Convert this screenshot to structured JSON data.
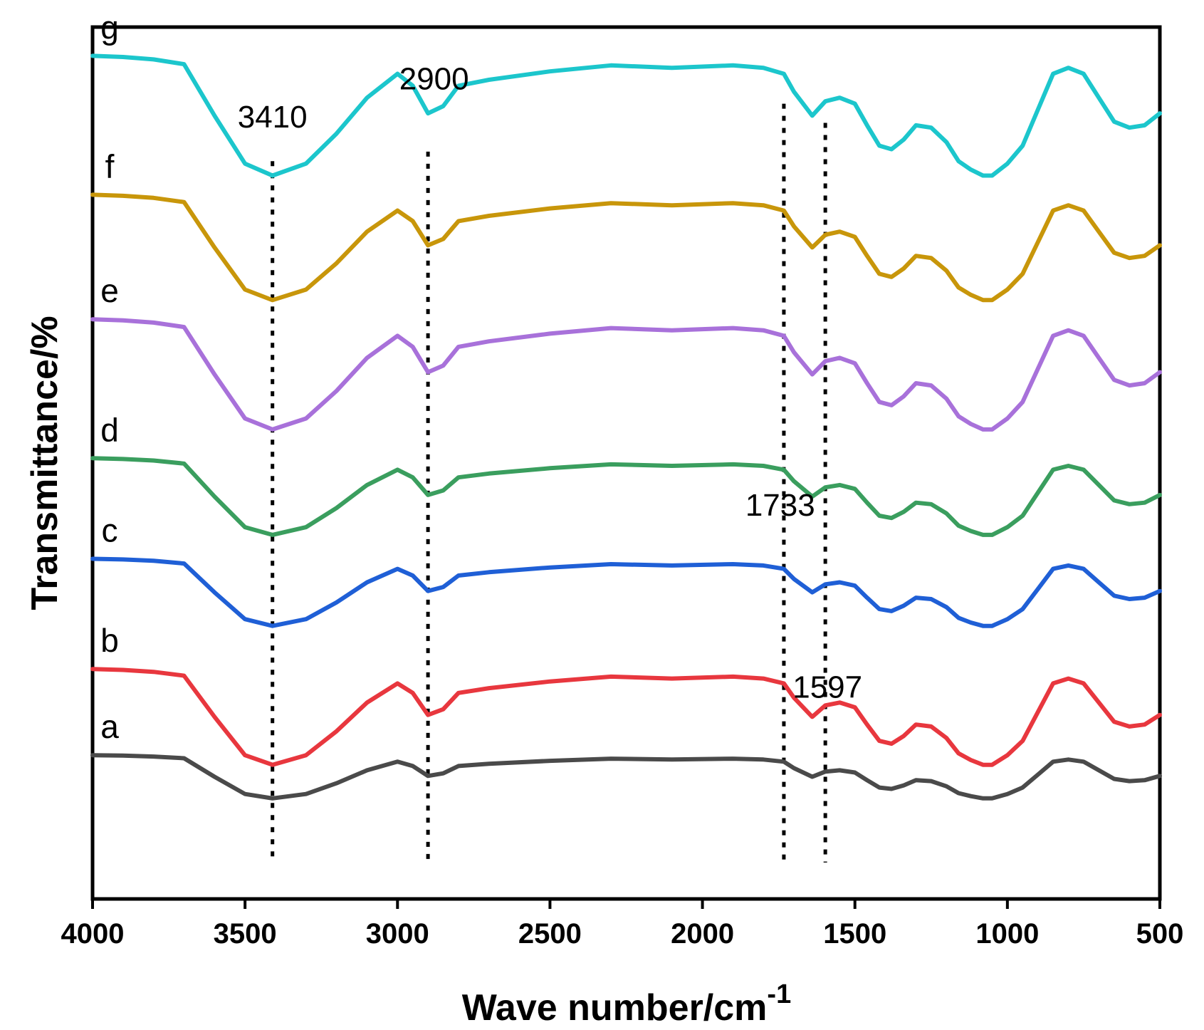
{
  "chart_data": {
    "type": "line",
    "title": "",
    "xlabel": "Wave number/cm",
    "xlabel_superscript": "-1",
    "ylabel": "Transmittance/%",
    "xlim": [
      4000,
      500
    ],
    "x_reversed": true,
    "ylim": [
      -0.5,
      8.6
    ],
    "y_ticks_shown": false,
    "grid": false,
    "legend": "none (inline letter labels at left)",
    "x_ticks": [
      4000,
      3500,
      3000,
      2500,
      2000,
      1500,
      1000,
      500
    ],
    "x_tick_labels": [
      "4000",
      "3500",
      "3000",
      "2500",
      "2000",
      "1500",
      "1000",
      "500"
    ],
    "reference_lines": [
      {
        "x": 3410,
        "y_top": 7.2
      },
      {
        "x": 2900,
        "y_top": 7.3
      },
      {
        "x": 1733,
        "y_top": 7.8
      },
      {
        "x": 1597,
        "y_top": 7.6
      }
    ],
    "annotations": [
      {
        "text": "3410",
        "x": 3410,
        "y": 7.55
      },
      {
        "text": "2900",
        "x": 2880,
        "y": 7.95
      },
      {
        "text": "1733",
        "x": 1745,
        "y": 3.5
      },
      {
        "text": "1597",
        "x": 1590,
        "y": 1.6
      }
    ],
    "series": [
      {
        "name": "a",
        "color": "#4a4a4a",
        "offset": 1.0,
        "depth": 0.45,
        "x": [
          4000,
          3900,
          3800,
          3700,
          3600,
          3500,
          3410,
          3300,
          3200,
          3100,
          3000,
          2950,
          2900,
          2850,
          2800,
          2700,
          2500,
          2300,
          2100,
          1900,
          1800,
          1733,
          1700,
          1640,
          1597,
          1550,
          1500,
          1460,
          1420,
          1380,
          1340,
          1300,
          1250,
          1200,
          1160,
          1120,
          1080,
          1050,
          1000,
          950,
          900,
          850,
          800,
          750,
          700,
          650,
          600,
          550,
          500
        ],
        "y": [
          1.0,
          0.99,
          0.97,
          0.93,
          0.5,
          0.1,
          0.0,
          0.1,
          0.35,
          0.65,
          0.85,
          0.75,
          0.52,
          0.58,
          0.75,
          0.8,
          0.87,
          0.92,
          0.9,
          0.92,
          0.9,
          0.85,
          0.7,
          0.5,
          0.62,
          0.65,
          0.6,
          0.42,
          0.25,
          0.22,
          0.3,
          0.42,
          0.4,
          0.28,
          0.12,
          0.05,
          0.0,
          0.0,
          0.1,
          0.25,
          0.55,
          0.85,
          0.9,
          0.85,
          0.65,
          0.45,
          0.4,
          0.42,
          0.52
        ]
      },
      {
        "name": "b",
        "color": "#e8373e",
        "offset": 1.9,
        "depth": 1.0,
        "x": [
          4000,
          3900,
          3800,
          3700,
          3600,
          3500,
          3410,
          3300,
          3200,
          3100,
          3000,
          2950,
          2900,
          2850,
          2800,
          2700,
          2500,
          2300,
          2100,
          1900,
          1800,
          1733,
          1700,
          1640,
          1597,
          1550,
          1500,
          1460,
          1420,
          1380,
          1340,
          1300,
          1250,
          1200,
          1160,
          1120,
          1080,
          1050,
          1000,
          950,
          900,
          850,
          800,
          750,
          700,
          650,
          600,
          550,
          500
        ],
        "y": [
          1.0,
          0.99,
          0.97,
          0.93,
          0.5,
          0.1,
          0.0,
          0.1,
          0.35,
          0.65,
          0.85,
          0.75,
          0.52,
          0.58,
          0.75,
          0.8,
          0.87,
          0.92,
          0.9,
          0.92,
          0.9,
          0.85,
          0.7,
          0.5,
          0.62,
          0.65,
          0.6,
          0.42,
          0.25,
          0.22,
          0.3,
          0.42,
          0.4,
          0.28,
          0.12,
          0.05,
          0.0,
          0.0,
          0.1,
          0.25,
          0.55,
          0.85,
          0.9,
          0.85,
          0.65,
          0.45,
          0.4,
          0.42,
          0.52
        ]
      },
      {
        "name": "c",
        "color": "#1f5fd6",
        "offset": 3.05,
        "depth": 0.7,
        "x": [
          4000,
          3900,
          3800,
          3700,
          3600,
          3500,
          3410,
          3300,
          3200,
          3100,
          3000,
          2950,
          2900,
          2850,
          2800,
          2700,
          2500,
          2300,
          2100,
          1900,
          1800,
          1733,
          1700,
          1640,
          1597,
          1550,
          1500,
          1460,
          1420,
          1380,
          1340,
          1300,
          1250,
          1200,
          1160,
          1120,
          1080,
          1050,
          1000,
          950,
          900,
          850,
          800,
          750,
          700,
          650,
          600,
          550,
          500
        ],
        "y": [
          1.0,
          0.99,
          0.97,
          0.93,
          0.5,
          0.1,
          0.0,
          0.1,
          0.35,
          0.65,
          0.85,
          0.75,
          0.52,
          0.58,
          0.75,
          0.8,
          0.87,
          0.92,
          0.9,
          0.92,
          0.9,
          0.85,
          0.7,
          0.5,
          0.62,
          0.65,
          0.6,
          0.42,
          0.25,
          0.22,
          0.3,
          0.42,
          0.4,
          0.28,
          0.12,
          0.05,
          0.0,
          0.0,
          0.1,
          0.25,
          0.55,
          0.85,
          0.9,
          0.85,
          0.65,
          0.45,
          0.4,
          0.42,
          0.52
        ]
      },
      {
        "name": "d",
        "color": "#3a9e5e",
        "offset": 4.1,
        "depth": 0.8,
        "x": [
          4000,
          3900,
          3800,
          3700,
          3600,
          3500,
          3410,
          3300,
          3200,
          3100,
          3000,
          2950,
          2900,
          2850,
          2800,
          2700,
          2500,
          2300,
          2100,
          1900,
          1800,
          1733,
          1700,
          1640,
          1597,
          1550,
          1500,
          1460,
          1420,
          1380,
          1340,
          1300,
          1250,
          1200,
          1160,
          1120,
          1080,
          1050,
          1000,
          950,
          900,
          850,
          800,
          750,
          700,
          650,
          600,
          550,
          500
        ],
        "y": [
          1.0,
          0.99,
          0.97,
          0.93,
          0.5,
          0.1,
          0.0,
          0.1,
          0.35,
          0.65,
          0.85,
          0.75,
          0.52,
          0.58,
          0.75,
          0.8,
          0.87,
          0.92,
          0.9,
          0.92,
          0.9,
          0.85,
          0.7,
          0.5,
          0.62,
          0.65,
          0.6,
          0.42,
          0.25,
          0.22,
          0.3,
          0.42,
          0.4,
          0.28,
          0.12,
          0.05,
          0.0,
          0.0,
          0.1,
          0.25,
          0.55,
          0.85,
          0.9,
          0.85,
          0.65,
          0.45,
          0.4,
          0.42,
          0.52
        ]
      },
      {
        "name": "e",
        "color": "#a871da",
        "offset": 5.55,
        "depth": 1.15,
        "x": [
          4000,
          3900,
          3800,
          3700,
          3600,
          3500,
          3410,
          3300,
          3200,
          3100,
          3000,
          2950,
          2900,
          2850,
          2800,
          2700,
          2500,
          2300,
          2100,
          1900,
          1800,
          1733,
          1700,
          1640,
          1597,
          1550,
          1500,
          1460,
          1420,
          1380,
          1340,
          1300,
          1250,
          1200,
          1160,
          1120,
          1080,
          1050,
          1000,
          950,
          900,
          850,
          800,
          750,
          700,
          650,
          600,
          550,
          500
        ],
        "y": [
          1.0,
          0.99,
          0.97,
          0.93,
          0.5,
          0.1,
          0.0,
          0.1,
          0.35,
          0.65,
          0.85,
          0.75,
          0.52,
          0.58,
          0.75,
          0.8,
          0.87,
          0.92,
          0.9,
          0.92,
          0.9,
          0.85,
          0.7,
          0.5,
          0.62,
          0.65,
          0.6,
          0.42,
          0.25,
          0.22,
          0.3,
          0.42,
          0.4,
          0.28,
          0.12,
          0.05,
          0.0,
          0.0,
          0.1,
          0.25,
          0.55,
          0.85,
          0.9,
          0.85,
          0.65,
          0.45,
          0.4,
          0.42,
          0.52
        ]
      },
      {
        "name": "f",
        "color": "#c8960a",
        "offset": 6.85,
        "depth": 1.1,
        "x": [
          4000,
          3900,
          3800,
          3700,
          3600,
          3500,
          3410,
          3300,
          3200,
          3100,
          3000,
          2950,
          2900,
          2850,
          2800,
          2700,
          2500,
          2300,
          2100,
          1900,
          1800,
          1733,
          1700,
          1640,
          1597,
          1550,
          1500,
          1460,
          1420,
          1380,
          1340,
          1300,
          1250,
          1200,
          1160,
          1120,
          1080,
          1050,
          1000,
          950,
          900,
          850,
          800,
          750,
          700,
          650,
          600,
          550,
          500
        ],
        "y": [
          1.0,
          0.99,
          0.97,
          0.93,
          0.5,
          0.1,
          0.0,
          0.1,
          0.35,
          0.65,
          0.85,
          0.75,
          0.52,
          0.58,
          0.75,
          0.8,
          0.87,
          0.92,
          0.9,
          0.92,
          0.9,
          0.85,
          0.7,
          0.5,
          0.62,
          0.65,
          0.6,
          0.42,
          0.25,
          0.22,
          0.3,
          0.42,
          0.4,
          0.28,
          0.12,
          0.05,
          0.0,
          0.0,
          0.1,
          0.25,
          0.55,
          0.85,
          0.9,
          0.85,
          0.65,
          0.45,
          0.4,
          0.42,
          0.52
        ]
      },
      {
        "name": "g",
        "color": "#1cc6cc",
        "offset": 8.3,
        "depth": 1.25,
        "x": [
          4000,
          3900,
          3800,
          3700,
          3600,
          3500,
          3410,
          3300,
          3200,
          3100,
          3000,
          2950,
          2900,
          2850,
          2800,
          2700,
          2500,
          2300,
          2100,
          1900,
          1800,
          1733,
          1700,
          1640,
          1597,
          1550,
          1500,
          1460,
          1420,
          1380,
          1340,
          1300,
          1250,
          1200,
          1160,
          1120,
          1080,
          1050,
          1000,
          950,
          900,
          850,
          800,
          750,
          700,
          650,
          600,
          550,
          500
        ],
        "y": [
          1.0,
          0.99,
          0.97,
          0.93,
          0.5,
          0.1,
          0.0,
          0.1,
          0.35,
          0.65,
          0.85,
          0.75,
          0.52,
          0.58,
          0.75,
          0.8,
          0.87,
          0.92,
          0.9,
          0.92,
          0.9,
          0.85,
          0.7,
          0.5,
          0.62,
          0.65,
          0.6,
          0.42,
          0.25,
          0.22,
          0.3,
          0.42,
          0.4,
          0.28,
          0.12,
          0.05,
          0.0,
          0.0,
          0.1,
          0.25,
          0.55,
          0.85,
          0.9,
          0.85,
          0.65,
          0.45,
          0.4,
          0.42,
          0.52
        ]
      }
    ]
  }
}
